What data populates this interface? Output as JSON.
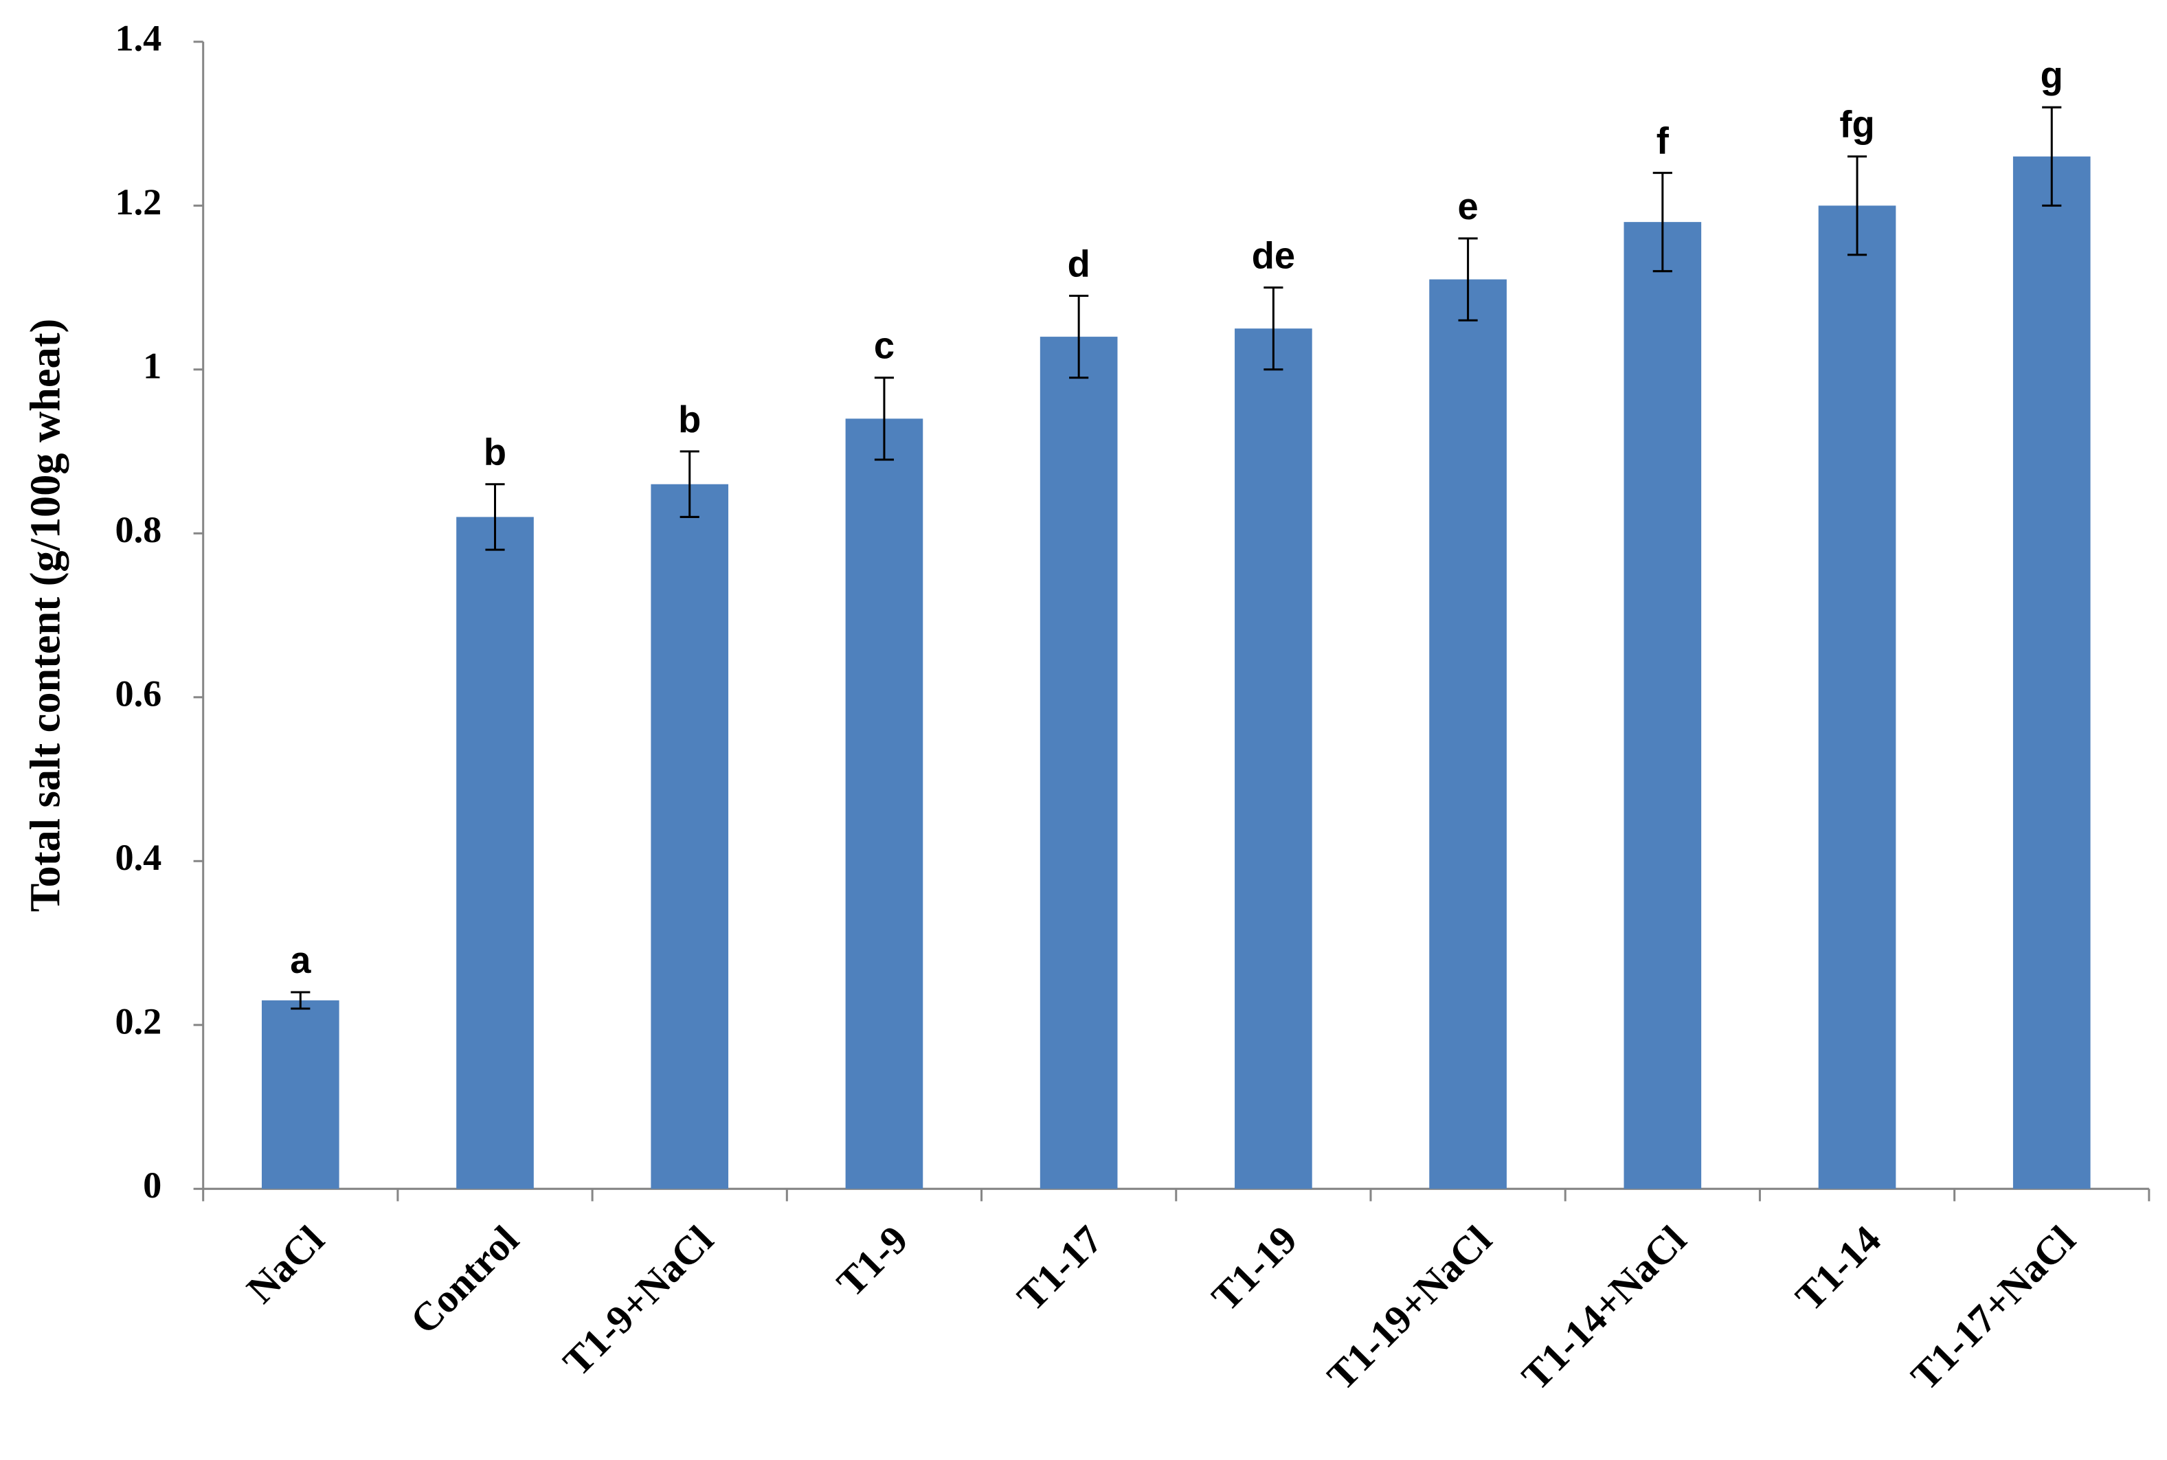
{
  "chart_data": {
    "type": "bar",
    "y_axis_label": "Total salt content (g/100g wheat)",
    "categories": [
      "NaCl",
      "Control",
      "T1-9+NaCl",
      "T1-9",
      "T1-17",
      "T1-19",
      "T1-19+NaCl",
      "T1-14+NaCl",
      "T1-14",
      "T1-17+NaCl"
    ],
    "values": [
      0.23,
      0.82,
      0.86,
      0.94,
      1.04,
      1.05,
      1.11,
      1.18,
      1.2,
      1.26
    ],
    "errors": [
      0.01,
      0.04,
      0.04,
      0.05,
      0.05,
      0.05,
      0.05,
      0.06,
      0.06,
      0.06
    ],
    "significance_letters": [
      "a",
      "b",
      "b",
      "c",
      "d",
      "de",
      "e",
      "f",
      "fg",
      "g"
    ],
    "color": "#4f81bd",
    "ylim": [
      0,
      1.4
    ],
    "yticks": [
      0,
      0.2,
      0.4,
      0.6,
      0.8,
      1,
      1.2,
      1.4
    ],
    "grid": false
  }
}
